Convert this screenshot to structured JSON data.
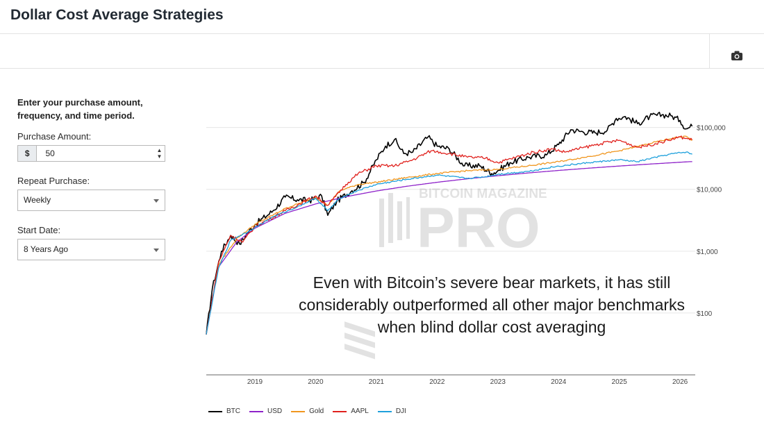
{
  "page": {
    "title": "Dollar Cost Average Strategies"
  },
  "toolbar": {
    "icon": "camera-icon"
  },
  "form": {
    "intro": "Enter your purchase amount, frequency, and time period.",
    "amount_label": "Purchase Amount:",
    "currency_symbol": "$",
    "amount_value": "50",
    "repeat_label": "Repeat Purchase:",
    "repeat_value": "Weekly",
    "start_label": "Start Date:",
    "start_value": "8 Years Ago"
  },
  "caption": "Even with Bitcoin’s severe bear markets, it has still considerably outperformed all other major benchmarks when blind dollar cost averaging",
  "watermark": {
    "top": "BITCOIN MAGAZINE",
    "bottom": "PRO"
  },
  "chart_data": {
    "type": "line",
    "title": "",
    "xlabel": "",
    "ylabel": "",
    "y_scale": "log",
    "xlim": [
      2018.2,
      2026.25
    ],
    "ylim": [
      10,
      400000
    ],
    "x_ticks": [
      2019,
      2020,
      2021,
      2022,
      2023,
      2024,
      2025,
      2026
    ],
    "x_tick_labels": [
      "2019",
      "2020",
      "2021",
      "2022",
      "2023",
      "2024",
      "2025",
      "2026"
    ],
    "y_ticks": [
      100,
      1000,
      10000,
      100000
    ],
    "y_tick_labels": [
      "$100",
      "$1,000",
      "$10,000",
      "$100,000"
    ],
    "grid": true,
    "legend_position": "bottom-left",
    "series": [
      {
        "name": "BTC",
        "color": "#000000",
        "points": [
          [
            2018.2,
            45
          ],
          [
            2018.3,
            250
          ],
          [
            2018.45,
            1000
          ],
          [
            2018.6,
            1800
          ],
          [
            2018.75,
            1300
          ],
          [
            2018.85,
            1800
          ],
          [
            2019.0,
            2700
          ],
          [
            2019.3,
            4500
          ],
          [
            2019.5,
            7500
          ],
          [
            2019.7,
            6800
          ],
          [
            2019.9,
            6600
          ],
          [
            2020.1,
            7800
          ],
          [
            2020.2,
            3800
          ],
          [
            2020.35,
            6500
          ],
          [
            2020.6,
            9500
          ],
          [
            2020.8,
            13000
          ],
          [
            2021.0,
            30000
          ],
          [
            2021.15,
            50000
          ],
          [
            2021.3,
            64000
          ],
          [
            2021.45,
            38000
          ],
          [
            2021.6,
            40000
          ],
          [
            2021.85,
            70000
          ],
          [
            2022.0,
            50000
          ],
          [
            2022.2,
            45000
          ],
          [
            2022.45,
            24000
          ],
          [
            2022.7,
            24000
          ],
          [
            2022.9,
            18000
          ],
          [
            2023.0,
            20000
          ],
          [
            2023.2,
            27000
          ],
          [
            2023.5,
            33000
          ],
          [
            2023.8,
            36000
          ],
          [
            2024.0,
            53000
          ],
          [
            2024.2,
            92000
          ],
          [
            2024.4,
            85000
          ],
          [
            2024.6,
            82000
          ],
          [
            2024.8,
            90000
          ],
          [
            2024.95,
            140000
          ],
          [
            2025.1,
            150000
          ],
          [
            2025.3,
            115000
          ],
          [
            2025.5,
            150000
          ],
          [
            2025.7,
            160000
          ],
          [
            2025.85,
            155000
          ],
          [
            2026.0,
            130000
          ],
          [
            2026.1,
            95000
          ],
          [
            2026.2,
            105000
          ]
        ]
      },
      {
        "name": "USD",
        "color": "#8e22c9",
        "points": [
          [
            2018.2,
            45
          ],
          [
            2018.4,
            550
          ],
          [
            2018.7,
            1400
          ],
          [
            2019.0,
            2350
          ],
          [
            2019.5,
            4100
          ],
          [
            2020.0,
            5800
          ],
          [
            2020.5,
            7600
          ],
          [
            2021.0,
            9400
          ],
          [
            2021.5,
            11200
          ],
          [
            2022.0,
            13000
          ],
          [
            2022.5,
            14800
          ],
          [
            2023.0,
            16600
          ],
          [
            2023.5,
            18400
          ],
          [
            2024.0,
            20200
          ],
          [
            2024.5,
            22000
          ],
          [
            2025.0,
            23800
          ],
          [
            2025.5,
            25600
          ],
          [
            2026.0,
            27400
          ],
          [
            2026.2,
            28100
          ]
        ]
      },
      {
        "name": "Gold",
        "color": "#f0961e",
        "points": [
          [
            2018.2,
            45
          ],
          [
            2018.4,
            600
          ],
          [
            2018.7,
            1600
          ],
          [
            2019.0,
            2700
          ],
          [
            2019.5,
            4900
          ],
          [
            2020.0,
            7400
          ],
          [
            2020.2,
            5500
          ],
          [
            2020.4,
            9500
          ],
          [
            2020.7,
            12000
          ],
          [
            2021.0,
            13000
          ],
          [
            2021.5,
            15500
          ],
          [
            2022.0,
            18000
          ],
          [
            2022.5,
            20000
          ],
          [
            2023.0,
            21000
          ],
          [
            2023.5,
            24000
          ],
          [
            2024.0,
            28000
          ],
          [
            2024.5,
            34000
          ],
          [
            2025.0,
            42000
          ],
          [
            2025.5,
            55000
          ],
          [
            2025.9,
            68000
          ],
          [
            2026.1,
            72000
          ],
          [
            2026.2,
            62000
          ]
        ]
      },
      {
        "name": "AAPL",
        "color": "#e0201c",
        "points": [
          [
            2018.2,
            45
          ],
          [
            2018.4,
            650
          ],
          [
            2018.6,
            1800
          ],
          [
            2018.8,
            1400
          ],
          [
            2019.0,
            2500
          ],
          [
            2019.5,
            4500
          ],
          [
            2020.0,
            7800
          ],
          [
            2020.2,
            5500
          ],
          [
            2020.5,
            12000
          ],
          [
            2020.7,
            18000
          ],
          [
            2021.0,
            24000
          ],
          [
            2021.3,
            24000
          ],
          [
            2021.6,
            30000
          ],
          [
            2021.9,
            42000
          ],
          [
            2022.2,
            38000
          ],
          [
            2022.5,
            33000
          ],
          [
            2022.8,
            32000
          ],
          [
            2023.0,
            27000
          ],
          [
            2023.3,
            33000
          ],
          [
            2023.6,
            40000
          ],
          [
            2023.9,
            45000
          ],
          [
            2024.1,
            40000
          ],
          [
            2024.4,
            47000
          ],
          [
            2024.7,
            55000
          ],
          [
            2025.0,
            62000
          ],
          [
            2025.3,
            48000
          ],
          [
            2025.5,
            52000
          ],
          [
            2025.8,
            62000
          ],
          [
            2026.0,
            70000
          ],
          [
            2026.2,
            63000
          ]
        ]
      },
      {
        "name": "DJI",
        "color": "#1ea0dc",
        "points": [
          [
            2018.2,
            45
          ],
          [
            2018.4,
            520
          ],
          [
            2018.6,
            1500
          ],
          [
            2018.9,
            2100
          ],
          [
            2019.3,
            3600
          ],
          [
            2019.7,
            5200
          ],
          [
            2020.0,
            7200
          ],
          [
            2020.2,
            4500
          ],
          [
            2020.4,
            7200
          ],
          [
            2020.7,
            9600
          ],
          [
            2021.0,
            12000
          ],
          [
            2021.5,
            14500
          ],
          [
            2022.0,
            17000
          ],
          [
            2022.5,
            15000
          ],
          [
            2022.8,
            16000
          ],
          [
            2023.0,
            17500
          ],
          [
            2023.5,
            19500
          ],
          [
            2023.9,
            23000
          ],
          [
            2024.5,
            27000
          ],
          [
            2025.0,
            30000
          ],
          [
            2025.3,
            28000
          ],
          [
            2025.6,
            33000
          ],
          [
            2025.9,
            38000
          ],
          [
            2026.1,
            40000
          ],
          [
            2026.2,
            37000
          ]
        ]
      }
    ]
  }
}
